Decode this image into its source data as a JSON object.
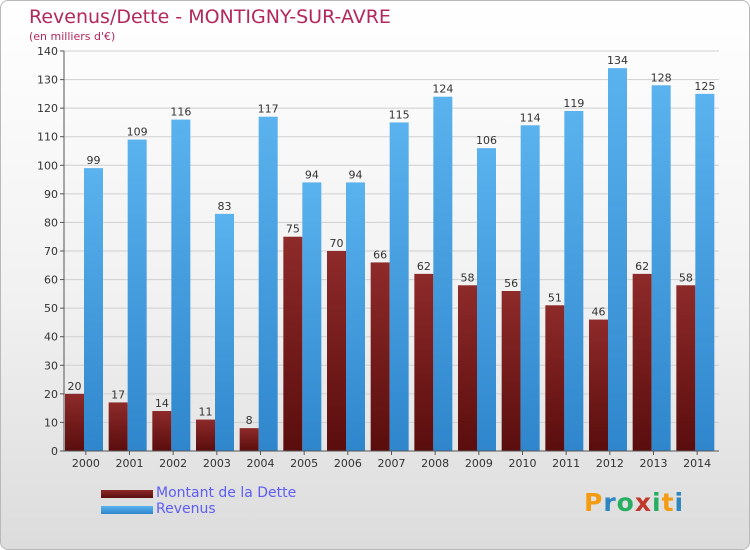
{
  "title": "Revenus/Dette - MONTIGNY-SUR-AVRE",
  "subtitle": "(en milliers d'€)",
  "colors": {
    "title": "#b3285a",
    "dette": "#7a1c1c",
    "revenus": "#4ea6e4",
    "legend_text": "#5d5df5"
  },
  "legend": [
    {
      "label": "Montant de la Dette",
      "color": "#7a1c1c"
    },
    {
      "label": "Revenus",
      "color": "#4ea6e4"
    }
  ],
  "logo": {
    "text": "Proxiti"
  },
  "chart_data": {
    "type": "bar",
    "categories": [
      "2000",
      "2001",
      "2002",
      "2003",
      "2004",
      "2005",
      "2006",
      "2007",
      "2008",
      "2009",
      "2010",
      "2011",
      "2012",
      "2013",
      "2014"
    ],
    "series": [
      {
        "name": "Montant de la Dette",
        "values": [
          20,
          17,
          14,
          11,
          8,
          75,
          70,
          66,
          62,
          58,
          56,
          51,
          46,
          62,
          58
        ]
      },
      {
        "name": "Revenus",
        "values": [
          99,
          109,
          116,
          83,
          117,
          94,
          94,
          115,
          124,
          106,
          114,
          119,
          134,
          128,
          125
        ]
      }
    ],
    "ylim": [
      0,
      140
    ],
    "yticks": [
      0,
      10,
      20,
      30,
      40,
      50,
      60,
      70,
      80,
      90,
      100,
      110,
      120,
      130,
      140
    ],
    "grid": true,
    "legend_position": "bottom-left"
  }
}
